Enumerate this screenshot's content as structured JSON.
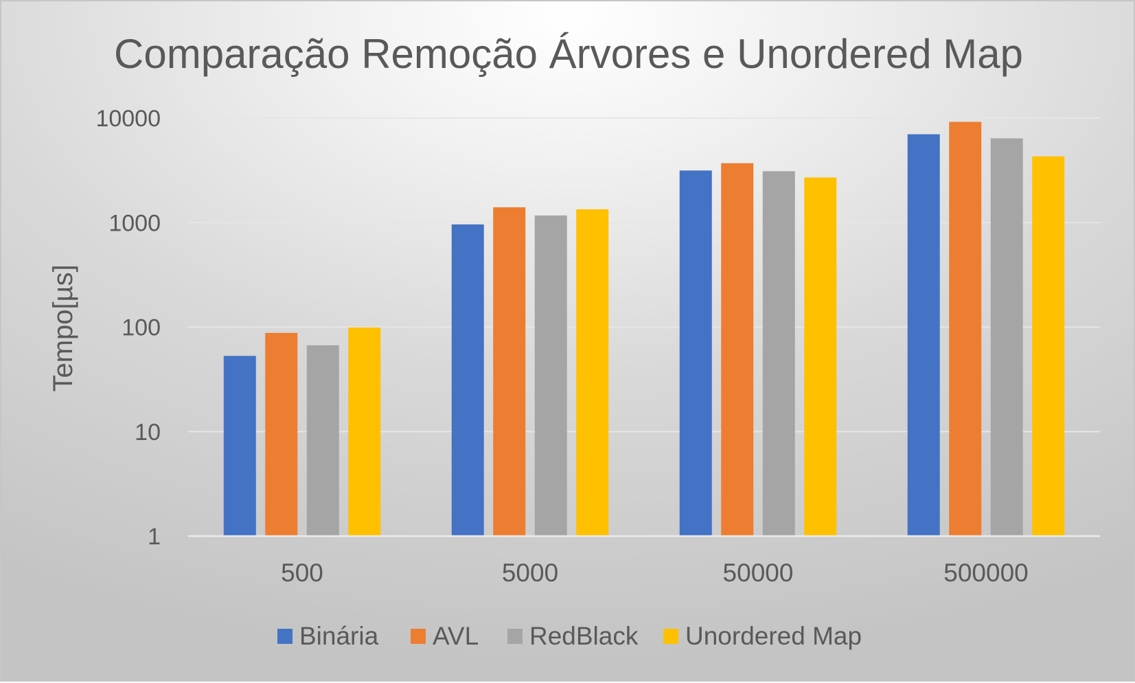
{
  "chart_data": {
    "type": "bar",
    "title": "Comparação Remoção Árvores e Unordered Map",
    "xlabel": "",
    "ylabel": "Tempo[µs]",
    "yscale": "log",
    "ylim": [
      1,
      10000
    ],
    "yticks": [
      "1",
      "10",
      "100",
      "1000",
      "10000"
    ],
    "categories": [
      "500",
      "5000",
      "50000",
      "500000"
    ],
    "series": [
      {
        "name": "Binária",
        "color": "#4472C4",
        "values": [
          53,
          960,
          3150,
          7000
        ]
      },
      {
        "name": "AVL",
        "color": "#ED7D31",
        "values": [
          88,
          1400,
          3700,
          9200
        ]
      },
      {
        "name": "RedBlack",
        "color": "#A5A5A5",
        "values": [
          67,
          1170,
          3100,
          6400
        ]
      },
      {
        "name": "Unordered Map",
        "color": "#FFC000",
        "values": [
          99,
          1340,
          2700,
          4300
        ]
      }
    ],
    "grid": true,
    "legend_position": "bottom"
  }
}
